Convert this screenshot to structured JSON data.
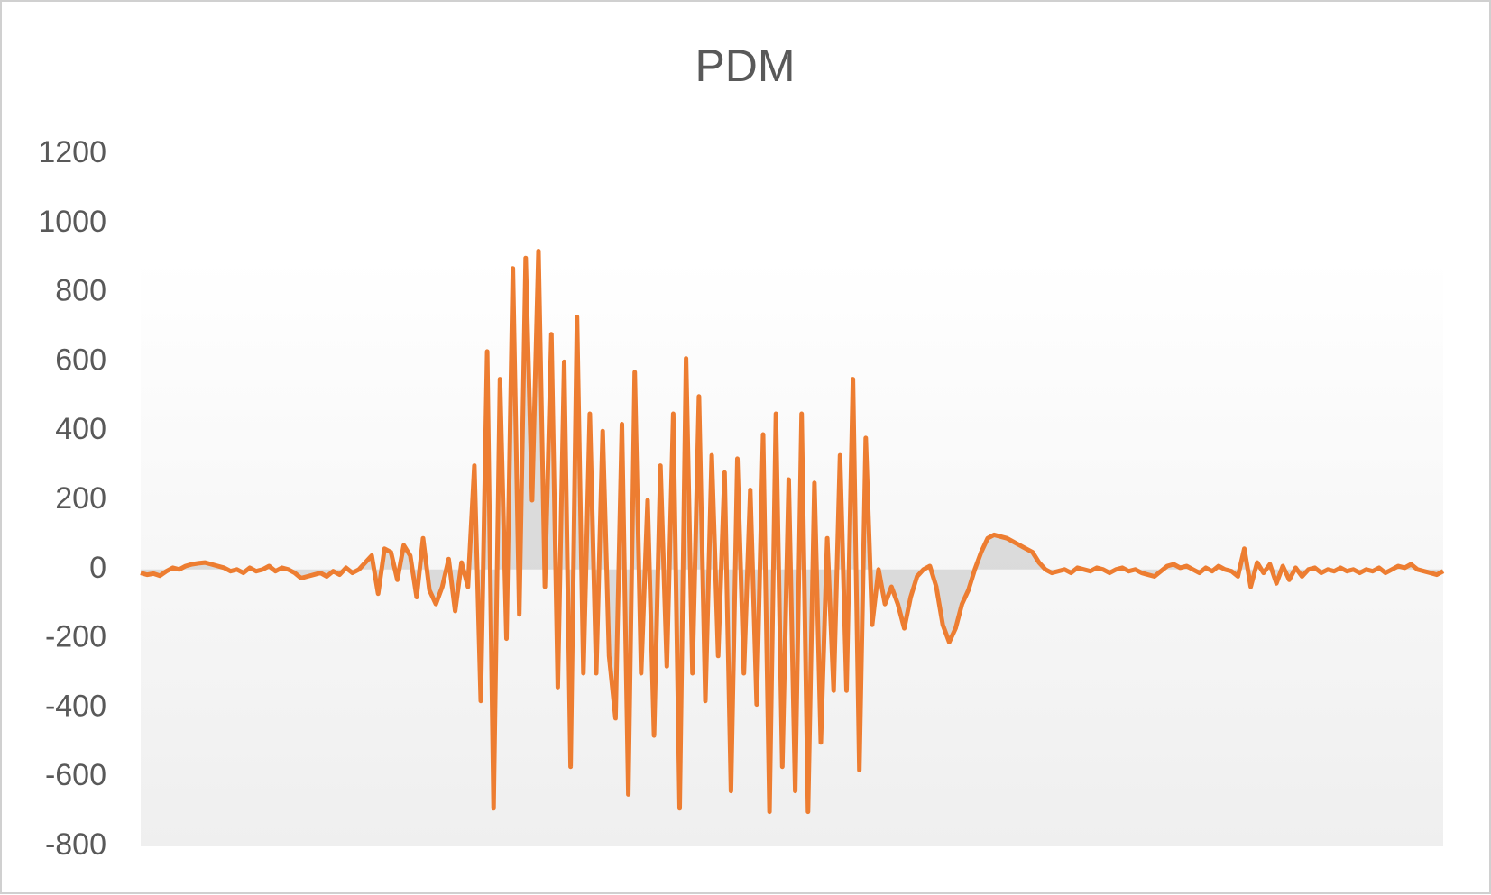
{
  "chart_data": {
    "type": "area",
    "title": "PDM",
    "values": [
      -10,
      -15,
      -12,
      -18,
      -5,
      5,
      0,
      10,
      15,
      18,
      20,
      15,
      10,
      5,
      -5,
      0,
      -10,
      5,
      -5,
      0,
      10,
      -5,
      5,
      0,
      -10,
      -25,
      -20,
      -15,
      -10,
      -20,
      -5,
      -15,
      5,
      -10,
      0,
      20,
      40,
      -70,
      60,
      50,
      -30,
      70,
      40,
      -80,
      90,
      -60,
      -100,
      -50,
      30,
      -120,
      20,
      -50,
      300,
      -380,
      630,
      -690,
      550,
      -200,
      870,
      -130,
      900,
      200,
      920,
      -50,
      680,
      -340,
      600,
      -570,
      730,
      -300,
      450,
      -300,
      400,
      -250,
      -430,
      420,
      -650,
      570,
      -300,
      200,
      -480,
      300,
      -280,
      450,
      -690,
      610,
      -300,
      500,
      -380,
      330,
      -250,
      280,
      -640,
      320,
      -300,
      230,
      -390,
      390,
      -700,
      450,
      -570,
      260,
      -640,
      450,
      -700,
      250,
      -500,
      90,
      -350,
      330,
      -350,
      550,
      -580,
      380,
      -160,
      0,
      -100,
      -50,
      -100,
      -170,
      -80,
      -20,
      0,
      10,
      -50,
      -160,
      -210,
      -170,
      -100,
      -60,
      0,
      50,
      90,
      100,
      95,
      90,
      80,
      70,
      60,
      50,
      20,
      0,
      -10,
      -5,
      0,
      -10,
      5,
      0,
      -5,
      5,
      0,
      -10,
      0,
      5,
      -5,
      0,
      -10,
      -15,
      -20,
      -5,
      10,
      15,
      5,
      10,
      0,
      -10,
      5,
      -5,
      10,
      0,
      -5,
      -20,
      60,
      -50,
      20,
      -10,
      15,
      -40,
      10,
      -30,
      5,
      -20,
      0,
      5,
      -10,
      0,
      -5,
      5,
      -5,
      0,
      -10,
      0,
      -5,
      5,
      -10,
      0,
      10,
      5,
      15,
      0,
      -5,
      -10,
      -15,
      -5
    ],
    "color": "#ED7D31",
    "fill_color": "#c8c8c8",
    "ylim": [
      -800,
      1200
    ],
    "yticks": [
      -800,
      -600,
      -400,
      -200,
      0,
      200,
      400,
      600,
      800,
      1000,
      1200
    ]
  }
}
